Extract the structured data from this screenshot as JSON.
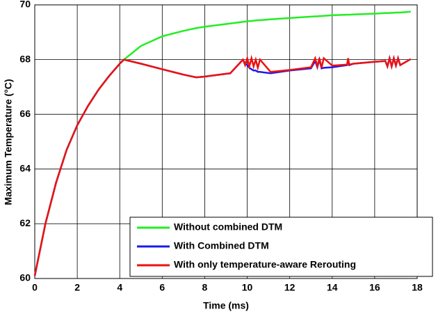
{
  "chart_data": {
    "type": "line",
    "x_label": "Time (ms)",
    "y_label": "Maximum Temperature (°C)",
    "x": [
      0,
      0.5,
      1,
      1.5,
      2,
      2.5,
      3,
      3.5,
      4,
      4.2,
      5,
      6,
      7,
      7.6,
      8,
      9,
      9.2,
      9.8,
      9.9,
      10,
      10.1,
      10.2,
      10.3,
      10.4,
      10.5,
      10.6,
      11.1,
      12,
      13,
      13.2,
      13.3,
      13.4,
      13.5,
      13.6,
      14,
      14.7,
      14.75,
      14.8,
      15,
      16,
      16.5,
      16.6,
      16.7,
      16.8,
      16.9,
      17,
      17.1,
      17.2,
      17.7
    ],
    "series": [
      {
        "name": "Without combined DTM",
        "color": "#22ee22",
        "values": [
          60.1,
          62.0,
          63.5,
          64.7,
          65.6,
          66.3,
          66.9,
          67.4,
          67.85,
          68.0,
          68.5,
          68.85,
          69.05,
          69.15,
          69.2,
          69.3,
          69.32,
          69.38,
          69.39,
          69.4,
          69.41,
          69.41,
          69.42,
          69.43,
          69.44,
          69.44,
          69.47,
          69.52,
          69.57,
          69.58,
          69.58,
          69.59,
          69.59,
          69.6,
          69.62,
          69.64,
          69.64,
          69.64,
          69.65,
          69.68,
          69.7,
          69.7,
          69.7,
          69.71,
          69.71,
          69.72,
          69.72,
          69.72,
          69.75
        ]
      },
      {
        "name": "With Combined DTM",
        "color": "#1a1aee",
        "values": [
          60.1,
          62.0,
          63.5,
          64.7,
          65.6,
          66.3,
          66.9,
          67.4,
          67.85,
          68.0,
          67.85,
          67.65,
          67.45,
          67.35,
          67.38,
          67.48,
          67.5,
          68.0,
          67.85,
          67.8,
          67.7,
          67.65,
          67.6,
          67.6,
          67.55,
          67.55,
          67.5,
          67.6,
          67.68,
          67.95,
          67.72,
          68.0,
          67.68,
          67.7,
          67.72,
          67.8,
          68.0,
          67.8,
          67.85,
          67.92,
          67.95,
          67.75,
          68.05,
          67.75,
          68.05,
          67.78,
          68.05,
          67.8,
          68.02
        ]
      },
      {
        "name": "With only temperature-aware Rerouting",
        "color": "#ee1111",
        "values": [
          60.1,
          62.0,
          63.5,
          64.7,
          65.6,
          66.3,
          66.9,
          67.4,
          67.85,
          68.0,
          67.85,
          67.65,
          67.45,
          67.35,
          67.38,
          67.48,
          67.5,
          68.0,
          67.8,
          68.05,
          67.75,
          68.05,
          67.75,
          68.0,
          67.7,
          68.0,
          67.55,
          67.62,
          67.72,
          68.05,
          67.75,
          68.05,
          67.7,
          68.05,
          67.78,
          67.82,
          68.05,
          67.82,
          67.85,
          67.92,
          67.95,
          67.75,
          68.05,
          67.75,
          68.05,
          67.78,
          68.05,
          67.8,
          68.02
        ]
      }
    ],
    "xlim": [
      0,
      18
    ],
    "xticks": [
      0,
      2,
      4,
      6,
      8,
      10,
      12,
      14,
      16,
      18
    ],
    "ylim": [
      60,
      70
    ],
    "yticks": [
      60,
      62,
      64,
      66,
      68,
      70
    ],
    "grid": true,
    "legend": "lower right"
  }
}
